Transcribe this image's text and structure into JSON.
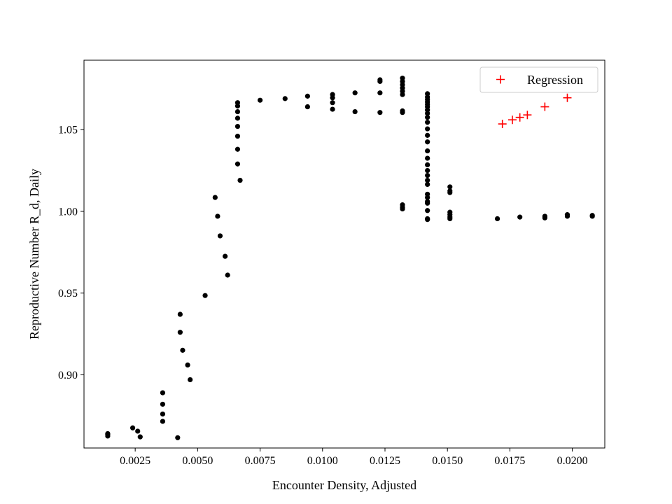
{
  "chart_data": {
    "type": "scatter",
    "xlabel": "Encounter Density, Adjusted",
    "ylabel": "Reproductive Number R_d, Daily",
    "xlim": [
      0.00045,
      0.0213
    ],
    "ylim": [
      0.8552,
      1.0925
    ],
    "x_ticks": [
      "0.0025",
      "0.0050",
      "0.0075",
      "0.0100",
      "0.0125",
      "0.0150",
      "0.0175",
      "0.0200"
    ],
    "x_tick_values": [
      0.0025,
      0.005,
      0.0075,
      0.01,
      0.0125,
      0.015,
      0.0175,
      0.02
    ],
    "y_ticks": [
      "0.90",
      "0.95",
      "1.00",
      "1.05"
    ],
    "y_tick_values": [
      0.9,
      0.95,
      1.0,
      1.05
    ],
    "grid": false,
    "legend_position": "top-right",
    "series": [
      {
        "name": "",
        "marker": "dot",
        "color": "#000000",
        "points": [
          [
            0.0014,
            0.8625
          ],
          [
            0.0014,
            0.8635
          ],
          [
            0.0014,
            0.864
          ],
          [
            0.0024,
            0.8675
          ],
          [
            0.0026,
            0.8655
          ],
          [
            0.0027,
            0.862
          ],
          [
            0.0036,
            0.889
          ],
          [
            0.0036,
            0.882
          ],
          [
            0.0036,
            0.876
          ],
          [
            0.0036,
            0.8715
          ],
          [
            0.0042,
            0.8615
          ],
          [
            0.0043,
            0.937
          ],
          [
            0.0043,
            0.926
          ],
          [
            0.0044,
            0.915
          ],
          [
            0.0046,
            0.906
          ],
          [
            0.0047,
            0.897
          ],
          [
            0.0053,
            0.9485
          ],
          [
            0.0057,
            1.0085
          ],
          [
            0.0058,
            0.997
          ],
          [
            0.0059,
            0.985
          ],
          [
            0.0061,
            0.9725
          ],
          [
            0.0062,
            0.961
          ],
          [
            0.0066,
            1.0665
          ],
          [
            0.0066,
            1.0645
          ],
          [
            0.0066,
            1.061
          ],
          [
            0.0066,
            1.057
          ],
          [
            0.0066,
            1.052
          ],
          [
            0.0066,
            1.046
          ],
          [
            0.0066,
            1.038
          ],
          [
            0.0066,
            1.029
          ],
          [
            0.0067,
            1.019
          ],
          [
            0.0075,
            1.068
          ],
          [
            0.0085,
            1.069
          ],
          [
            0.0094,
            1.0705
          ],
          [
            0.0094,
            1.064
          ],
          [
            0.0104,
            1.0715
          ],
          [
            0.0104,
            1.0695
          ],
          [
            0.0104,
            1.0665
          ],
          [
            0.0104,
            1.0625
          ],
          [
            0.0113,
            1.0725
          ],
          [
            0.0113,
            1.061
          ],
          [
            0.0123,
            1.0805
          ],
          [
            0.0123,
            1.0795
          ],
          [
            0.0123,
            1.0725
          ],
          [
            0.0123,
            1.0605
          ],
          [
            0.0132,
            1.0815
          ],
          [
            0.0132,
            1.0795
          ],
          [
            0.0132,
            1.0775
          ],
          [
            0.0132,
            1.0755
          ],
          [
            0.0132,
            1.0735
          ],
          [
            0.0132,
            1.0715
          ],
          [
            0.0132,
            1.0615
          ],
          [
            0.0132,
            1.0605
          ],
          [
            0.0132,
            1.004
          ],
          [
            0.0132,
            1.0025
          ],
          [
            0.0132,
            1.0015
          ],
          [
            0.0142,
            1.072
          ],
          [
            0.0142,
            1.07
          ],
          [
            0.0142,
            1.0685
          ],
          [
            0.0142,
            1.067
          ],
          [
            0.0142,
            1.0655
          ],
          [
            0.0142,
            1.064
          ],
          [
            0.0142,
            1.062
          ],
          [
            0.0142,
            1.06
          ],
          [
            0.0142,
            1.0575
          ],
          [
            0.0142,
            1.0545
          ],
          [
            0.0142,
            1.0505
          ],
          [
            0.0142,
            1.0465
          ],
          [
            0.0142,
            1.0425
          ],
          [
            0.0142,
            1.037
          ],
          [
            0.0142,
            1.0325
          ],
          [
            0.0142,
            1.0285
          ],
          [
            0.0142,
            1.025
          ],
          [
            0.0142,
            1.022
          ],
          [
            0.0142,
            1.019
          ],
          [
            0.0142,
            1.0165
          ],
          [
            0.0142,
            1.0105
          ],
          [
            0.0142,
            1.0085
          ],
          [
            0.0142,
            1.006
          ],
          [
            0.0142,
            1.005
          ],
          [
            0.0142,
            1.0005
          ],
          [
            0.0142,
            0.9955
          ],
          [
            0.0142,
            0.995
          ],
          [
            0.0151,
            1.015
          ],
          [
            0.0151,
            1.0125
          ],
          [
            0.0151,
            1.0115
          ],
          [
            0.0151,
            0.9995
          ],
          [
            0.0151,
            0.998
          ],
          [
            0.0151,
            0.9965
          ],
          [
            0.0151,
            0.9955
          ],
          [
            0.017,
            0.9955
          ],
          [
            0.0179,
            0.9965
          ],
          [
            0.0189,
            0.997
          ],
          [
            0.0189,
            0.996
          ],
          [
            0.0198,
            0.998
          ],
          [
            0.0198,
            0.997
          ],
          [
            0.0208,
            0.9975
          ],
          [
            0.0208,
            0.997
          ]
        ]
      },
      {
        "name": "Regression",
        "marker": "plus",
        "color": "#ff0000",
        "points": [
          [
            0.0172,
            1.0535
          ],
          [
            0.0176,
            1.056
          ],
          [
            0.0179,
            1.0575
          ],
          [
            0.0182,
            1.059
          ],
          [
            0.0189,
            1.064
          ],
          [
            0.0198,
            1.0695
          ]
        ]
      }
    ]
  }
}
